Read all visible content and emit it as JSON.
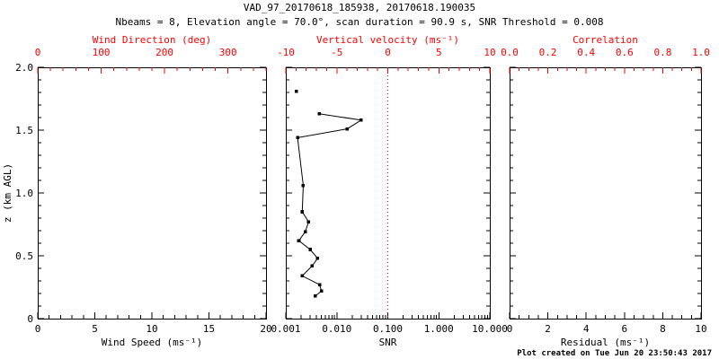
{
  "title": "VAD_97_20170618_185938, 20170618.190035",
  "subtitle": "Nbeams = 8, Elevation angle = 70.0°, scan duration = 90.9 s, SNR Threshold = 0.008",
  "footer": "Plot created on Tue Jun 20 23:50:43 2017",
  "colors": {
    "background": "#ffffff",
    "axis": "#000000",
    "top_axis": "#ff0000",
    "data": "#000000",
    "zero_line": "#ff0000"
  },
  "y_axis": {
    "label": "z (km AGL)",
    "lim": [
      0,
      2
    ],
    "ticks": [
      0,
      0.5,
      1,
      1.5,
      2
    ],
    "tick_labels": [
      "0",
      "0.5",
      "1.0",
      "1.5",
      "2.0"
    ],
    "minor_step": 0.1
  },
  "chart_data": [
    {
      "type": "line",
      "name": "wind-speed",
      "x_axis": {
        "label": "Wind Speed (ms⁻¹)",
        "lim": [
          0,
          20
        ],
        "ticks": [
          0,
          5,
          10,
          15,
          20
        ],
        "tick_labels": [
          "0",
          "5",
          "10",
          "15",
          "20"
        ],
        "minor_step": 1
      },
      "top_axis": {
        "label": "Wind Direction (deg)",
        "lim": [
          0,
          360
        ],
        "ticks": [
          0,
          100,
          200,
          300
        ],
        "tick_labels": [
          "0",
          "100",
          "200",
          "300"
        ],
        "minor_step": 20
      },
      "series": []
    },
    {
      "type": "scatter-line",
      "name": "snr",
      "x_axis": {
        "label": "SNR",
        "scale": "log",
        "lim": [
          0.001,
          10
        ],
        "ticks": [
          0.001,
          0.01,
          0.1,
          1,
          10
        ],
        "tick_labels": [
          "0.001",
          "0.010",
          "0.100",
          "1.000",
          "10.000"
        ]
      },
      "top_axis": {
        "label": "Vertical velocity (ms⁻¹)",
        "lim": [
          -10,
          10
        ],
        "ticks": [
          -10,
          -5,
          0,
          5,
          10
        ],
        "tick_labels": [
          "-10",
          "-5",
          "0",
          "5",
          "10"
        ],
        "minor_step": 1
      },
      "zero_line_value": 0,
      "series": [
        {
          "name": "snr-profile-top",
          "points": [
            [
              0.0016,
              1.81
            ]
          ]
        },
        {
          "name": "snr-profile",
          "points": [
            [
              0.0045,
              1.63
            ],
            [
              0.03,
              1.58
            ],
            [
              0.016,
              1.51
            ],
            [
              0.0017,
              1.44
            ],
            [
              0.0022,
              1.06
            ],
            [
              0.0021,
              0.85
            ],
            [
              0.0028,
              0.77
            ],
            [
              0.0024,
              0.69
            ],
            [
              0.0018,
              0.62
            ],
            [
              0.003,
              0.55
            ],
            [
              0.0042,
              0.48
            ],
            [
              0.0033,
              0.42
            ],
            [
              0.0021,
              0.34
            ],
            [
              0.0046,
              0.27
            ],
            [
              0.005,
              0.22
            ],
            [
              0.0038,
              0.18
            ]
          ]
        }
      ]
    },
    {
      "type": "line",
      "name": "residual",
      "x_axis": {
        "label": "Residual (ms⁻¹)",
        "lim": [
          0,
          10
        ],
        "ticks": [
          0,
          2,
          4,
          6,
          8,
          10
        ],
        "tick_labels": [
          "0",
          "2",
          "4",
          "6",
          "8",
          "10"
        ],
        "minor_step": 0.5
      },
      "top_axis": {
        "label": "Correlation",
        "lim": [
          0,
          1
        ],
        "ticks": [
          0,
          0.2,
          0.4,
          0.6,
          0.8,
          1
        ],
        "tick_labels": [
          "0.0",
          "0.2",
          "0.4",
          "0.6",
          "0.8",
          "1.0"
        ],
        "minor_step": 0.05
      },
      "series": []
    }
  ]
}
